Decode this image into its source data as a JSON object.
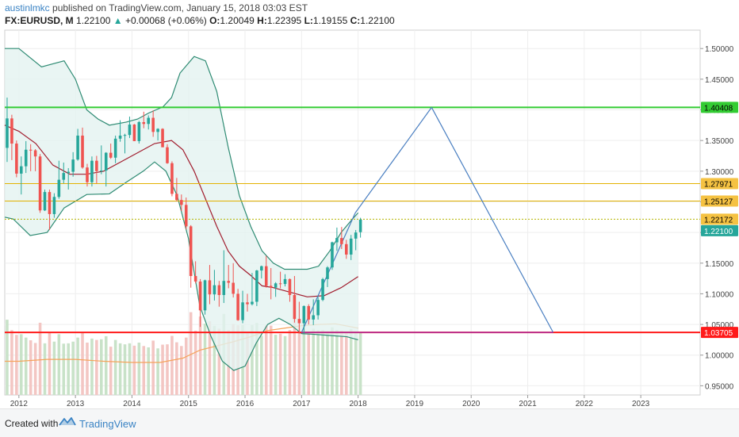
{
  "header": {
    "author": "austinlmkc",
    "published": "published on TradingView.com, January 15, 2018 03:03 EST",
    "symbol": "FX:EURUSD, M",
    "last": "1.22100",
    "change": "+0.00068 (+0.06%)",
    "ohlc": {
      "o_label": "O:",
      "o": "1.20049",
      "h_label": "H:",
      "h": "1.22395",
      "l_label": "L:",
      "l": "1.19155",
      "c_label": "C:",
      "c": "1.22100"
    }
  },
  "footer": {
    "created_with": "Created with",
    "brand": "TradingView"
  },
  "colors": {
    "up": "#26a69a",
    "down": "#ef5350",
    "bb": "#2e8b73",
    "bb_fill": "#e3f3f0",
    "sma": "#a11d2e",
    "green_line": "#33cc33",
    "yellow_line": "#e3b200",
    "red_line": "#ff1a1a",
    "purple_line": "#9c2fb5",
    "blue_line": "#4a7fc1",
    "vol_up": "#c8e2c8",
    "vol_down": "#f3c6c3",
    "vol_ma": "#f5a35b"
  },
  "chart_data": {
    "type": "candlestick",
    "interval": "monthly",
    "y_axis": {
      "ylim": [
        0.935,
        1.53
      ],
      "ticks": [
        "1.50000",
        "1.45000",
        "1.40000",
        "1.35000",
        "1.30000",
        "1.25000",
        "1.20000",
        "1.15000",
        "1.10000",
        "1.05000",
        "1.00000",
        "0.95000"
      ]
    },
    "x_axis": {
      "xlim": [
        2011.75,
        2024.05
      ],
      "ticks": [
        "2012",
        "2013",
        "2014",
        "2015",
        "2016",
        "2017",
        "2018",
        "2019",
        "2020",
        "2021",
        "2022",
        "2023"
      ]
    },
    "price_labels": [
      {
        "value": 1.40408,
        "label": "1.40408",
        "bg": "#33cc33",
        "fg": "#000000"
      },
      {
        "value": 1.27971,
        "label": "1.27971",
        "bg": "#f5c242",
        "fg": "#000000"
      },
      {
        "value": 1.25127,
        "label": "1.25127",
        "bg": "#f5c242",
        "fg": "#000000"
      },
      {
        "value": 1.22172,
        "label": "1.22172",
        "bg": "#f5c242",
        "fg": "#000000"
      },
      {
        "value": 1.221,
        "label": "1.22100",
        "bg": "#26a69a",
        "fg": "#ffffff"
      },
      {
        "value": 1.03705,
        "label": "1.03705",
        "bg": "#ff1a1a",
        "fg": "#ffffff"
      }
    ],
    "horizontal_lines": [
      {
        "value": 1.40408,
        "color": "#33cc33",
        "width": 2,
        "dash": ""
      },
      {
        "value": 1.27971,
        "color": "#e3b200",
        "width": 1,
        "dash": ""
      },
      {
        "value": 1.25127,
        "color": "#e3b200",
        "width": 1,
        "dash": ""
      },
      {
        "value": 1.22172,
        "color": "#b5b500",
        "width": 1,
        "dash": "2,2"
      },
      {
        "value": 1.03705,
        "color": "#ff1a1a",
        "width": 2,
        "dash": ""
      }
    ],
    "segments": [
      {
        "x1": 2017.0,
        "y1": 1.037,
        "x2": 2017.95,
        "y2": 1.232,
        "color": "#4a7fc1"
      },
      {
        "x1": 2017.95,
        "y1": 1.232,
        "x2": 2019.3,
        "y2": 1.404,
        "color": "#4a7fc1"
      },
      {
        "x1": 2019.3,
        "y1": 1.404,
        "x2": 2021.45,
        "y2": 1.037,
        "color": "#4a7fc1"
      },
      {
        "x1": 2017.0,
        "y1": 1.037,
        "x2": 2021.45,
        "y2": 1.037,
        "color": "#9c2fb5"
      }
    ],
    "candles": [
      {
        "t": "2011-10",
        "o": 1.338,
        "h": 1.42,
        "l": 1.315,
        "c": 1.386
      },
      {
        "t": "2011-11",
        "o": 1.386,
        "h": 1.392,
        "l": 1.318,
        "c": 1.345
      },
      {
        "t": "2011-12",
        "o": 1.345,
        "h": 1.35,
        "l": 1.29,
        "c": 1.296
      },
      {
        "t": "2012-01",
        "o": 1.296,
        "h": 1.324,
        "l": 1.262,
        "c": 1.308
      },
      {
        "t": "2012-02",
        "o": 1.308,
        "h": 1.349,
        "l": 1.297,
        "c": 1.335
      },
      {
        "t": "2012-03",
        "o": 1.335,
        "h": 1.344,
        "l": 1.3,
        "c": 1.334
      },
      {
        "t": "2012-04",
        "o": 1.334,
        "h": 1.336,
        "l": 1.3,
        "c": 1.324
      },
      {
        "t": "2012-05",
        "o": 1.324,
        "h": 1.328,
        "l": 1.232,
        "c": 1.236
      },
      {
        "t": "2012-06",
        "o": 1.236,
        "h": 1.27,
        "l": 1.235,
        "c": 1.266
      },
      {
        "t": "2012-07",
        "o": 1.266,
        "h": 1.27,
        "l": 1.204,
        "c": 1.23
      },
      {
        "t": "2012-08",
        "o": 1.23,
        "h": 1.264,
        "l": 1.224,
        "c": 1.258
      },
      {
        "t": "2012-09",
        "o": 1.258,
        "h": 1.317,
        "l": 1.255,
        "c": 1.286
      },
      {
        "t": "2012-10",
        "o": 1.286,
        "h": 1.314,
        "l": 1.28,
        "c": 1.297
      },
      {
        "t": "2012-11",
        "o": 1.297,
        "h": 1.305,
        "l": 1.27,
        "c": 1.299
      },
      {
        "t": "2012-12",
        "o": 1.299,
        "h": 1.331,
        "l": 1.291,
        "c": 1.319
      },
      {
        "t": "2013-01",
        "o": 1.319,
        "h": 1.369,
        "l": 1.317,
        "c": 1.358
      },
      {
        "t": "2013-02",
        "o": 1.358,
        "h": 1.371,
        "l": 1.304,
        "c": 1.306
      },
      {
        "t": "2013-03",
        "o": 1.306,
        "h": 1.312,
        "l": 1.275,
        "c": 1.282
      },
      {
        "t": "2013-04",
        "o": 1.282,
        "h": 1.324,
        "l": 1.275,
        "c": 1.317
      },
      {
        "t": "2013-05",
        "o": 1.317,
        "h": 1.325,
        "l": 1.28,
        "c": 1.3
      },
      {
        "t": "2013-06",
        "o": 1.3,
        "h": 1.342,
        "l": 1.295,
        "c": 1.301
      },
      {
        "t": "2013-07",
        "o": 1.301,
        "h": 1.331,
        "l": 1.275,
        "c": 1.33
      },
      {
        "t": "2013-08",
        "o": 1.33,
        "h": 1.345,
        "l": 1.32,
        "c": 1.322
      },
      {
        "t": "2013-09",
        "o": 1.322,
        "h": 1.358,
        "l": 1.313,
        "c": 1.353
      },
      {
        "t": "2013-10",
        "o": 1.353,
        "h": 1.383,
        "l": 1.348,
        "c": 1.358
      },
      {
        "t": "2013-11",
        "o": 1.358,
        "h": 1.361,
        "l": 1.329,
        "c": 1.359
      },
      {
        "t": "2013-12",
        "o": 1.359,
        "h": 1.389,
        "l": 1.354,
        "c": 1.376
      },
      {
        "t": "2014-01",
        "o": 1.376,
        "h": 1.377,
        "l": 1.349,
        "c": 1.349
      },
      {
        "t": "2014-02",
        "o": 1.349,
        "h": 1.382,
        "l": 1.345,
        "c": 1.38
      },
      {
        "t": "2014-03",
        "o": 1.38,
        "h": 1.397,
        "l": 1.37,
        "c": 1.377
      },
      {
        "t": "2014-04",
        "o": 1.377,
        "h": 1.391,
        "l": 1.368,
        "c": 1.387
      },
      {
        "t": "2014-05",
        "o": 1.387,
        "h": 1.399,
        "l": 1.356,
        "c": 1.364
      },
      {
        "t": "2014-06",
        "o": 1.364,
        "h": 1.37,
        "l": 1.35,
        "c": 1.369
      },
      {
        "t": "2014-07",
        "o": 1.369,
        "h": 1.37,
        "l": 1.339,
        "c": 1.339
      },
      {
        "t": "2014-08",
        "o": 1.339,
        "h": 1.344,
        "l": 1.312,
        "c": 1.313
      },
      {
        "t": "2014-09",
        "o": 1.313,
        "h": 1.316,
        "l": 1.259,
        "c": 1.263
      },
      {
        "t": "2014-10",
        "o": 1.263,
        "h": 1.289,
        "l": 1.251,
        "c": 1.253
      },
      {
        "t": "2014-11",
        "o": 1.253,
        "h": 1.262,
        "l": 1.235,
        "c": 1.245
      },
      {
        "t": "2014-12",
        "o": 1.245,
        "h": 1.257,
        "l": 1.205,
        "c": 1.21
      },
      {
        "t": "2015-01",
        "o": 1.21,
        "h": 1.212,
        "l": 1.11,
        "c": 1.129
      },
      {
        "t": "2015-02",
        "o": 1.129,
        "h": 1.153,
        "l": 1.117,
        "c": 1.12
      },
      {
        "t": "2015-03",
        "o": 1.12,
        "h": 1.124,
        "l": 1.046,
        "c": 1.073
      },
      {
        "t": "2015-04",
        "o": 1.073,
        "h": 1.123,
        "l": 1.066,
        "c": 1.122
      },
      {
        "t": "2015-05",
        "o": 1.122,
        "h": 1.147,
        "l": 1.083,
        "c": 1.099
      },
      {
        "t": "2015-06",
        "o": 1.099,
        "h": 1.139,
        "l": 1.089,
        "c": 1.114
      },
      {
        "t": "2015-07",
        "o": 1.114,
        "h": 1.121,
        "l": 1.079,
        "c": 1.098
      },
      {
        "t": "2015-08",
        "o": 1.098,
        "h": 1.171,
        "l": 1.085,
        "c": 1.121
      },
      {
        "t": "2015-09",
        "o": 1.121,
        "h": 1.147,
        "l": 1.109,
        "c": 1.118
      },
      {
        "t": "2015-10",
        "o": 1.118,
        "h": 1.15,
        "l": 1.094,
        "c": 1.1
      },
      {
        "t": "2015-11",
        "o": 1.1,
        "h": 1.108,
        "l": 1.056,
        "c": 1.057
      },
      {
        "t": "2015-12",
        "o": 1.057,
        "h": 1.105,
        "l": 1.052,
        "c": 1.086
      },
      {
        "t": "2016-01",
        "o": 1.086,
        "h": 1.1,
        "l": 1.071,
        "c": 1.083
      },
      {
        "t": "2016-02",
        "o": 1.083,
        "h": 1.134,
        "l": 1.081,
        "c": 1.087
      },
      {
        "t": "2016-03",
        "o": 1.087,
        "h": 1.139,
        "l": 1.08,
        "c": 1.138
      },
      {
        "t": "2016-04",
        "o": 1.138,
        "h": 1.146,
        "l": 1.125,
        "c": 1.145
      },
      {
        "t": "2016-05",
        "o": 1.145,
        "h": 1.162,
        "l": 1.11,
        "c": 1.113
      },
      {
        "t": "2016-06",
        "o": 1.113,
        "h": 1.142,
        "l": 1.091,
        "c": 1.11
      },
      {
        "t": "2016-07",
        "o": 1.11,
        "h": 1.119,
        "l": 1.095,
        "c": 1.117
      },
      {
        "t": "2016-08",
        "o": 1.117,
        "h": 1.136,
        "l": 1.109,
        "c": 1.116
      },
      {
        "t": "2016-09",
        "o": 1.116,
        "h": 1.132,
        "l": 1.112,
        "c": 1.124
      },
      {
        "t": "2016-10",
        "o": 1.124,
        "h": 1.125,
        "l": 1.087,
        "c": 1.098
      },
      {
        "t": "2016-11",
        "o": 1.098,
        "h": 1.129,
        "l": 1.053,
        "c": 1.059
      },
      {
        "t": "2016-12",
        "o": 1.059,
        "h": 1.087,
        "l": 1.035,
        "c": 1.052
      },
      {
        "t": "2017-01",
        "o": 1.052,
        "h": 1.081,
        "l": 1.034,
        "c": 1.08
      },
      {
        "t": "2017-02",
        "o": 1.08,
        "h": 1.083,
        "l": 1.05,
        "c": 1.058
      },
      {
        "t": "2017-03",
        "o": 1.058,
        "h": 1.091,
        "l": 1.049,
        "c": 1.065
      },
      {
        "t": "2017-04",
        "o": 1.065,
        "h": 1.095,
        "l": 1.058,
        "c": 1.09
      },
      {
        "t": "2017-05",
        "o": 1.09,
        "h": 1.126,
        "l": 1.088,
        "c": 1.124
      },
      {
        "t": "2017-06",
        "o": 1.124,
        "h": 1.145,
        "l": 1.111,
        "c": 1.143
      },
      {
        "t": "2017-07",
        "o": 1.143,
        "h": 1.185,
        "l": 1.139,
        "c": 1.184
      },
      {
        "t": "2017-08",
        "o": 1.184,
        "h": 1.208,
        "l": 1.17,
        "c": 1.191
      },
      {
        "t": "2017-09",
        "o": 1.191,
        "h": 1.209,
        "l": 1.173,
        "c": 1.181
      },
      {
        "t": "2017-10",
        "o": 1.181,
        "h": 1.188,
        "l": 1.157,
        "c": 1.164
      },
      {
        "t": "2017-11",
        "o": 1.164,
        "h": 1.196,
        "l": 1.155,
        "c": 1.19
      },
      {
        "t": "2017-12",
        "o": 1.19,
        "h": 1.204,
        "l": 1.171,
        "c": 1.2
      },
      {
        "t": "2018-01",
        "o": 1.2005,
        "h": 1.224,
        "l": 1.1916,
        "c": 1.221
      }
    ],
    "indicators": {
      "bb_upper": [
        [
          2011.75,
          1.5
        ],
        [
          2012.0,
          1.5
        ],
        [
          2012.4,
          1.47
        ],
        [
          2012.8,
          1.48
        ],
        [
          2013.0,
          1.45
        ],
        [
          2013.2,
          1.4
        ],
        [
          2013.4,
          1.385
        ],
        [
          2013.6,
          1.375
        ],
        [
          2013.9,
          1.38
        ],
        [
          2014.1,
          1.385
        ],
        [
          2014.3,
          1.395
        ],
        [
          2014.55,
          1.405
        ],
        [
          2014.7,
          1.42
        ],
        [
          2014.85,
          1.46
        ],
        [
          2015.1,
          1.487
        ],
        [
          2015.3,
          1.48
        ],
        [
          2015.5,
          1.43
        ],
        [
          2015.7,
          1.34
        ],
        [
          2015.9,
          1.26
        ],
        [
          2016.1,
          1.21
        ],
        [
          2016.3,
          1.17
        ],
        [
          2016.5,
          1.15
        ],
        [
          2016.7,
          1.14
        ],
        [
          2016.9,
          1.14
        ],
        [
          2017.1,
          1.14
        ],
        [
          2017.3,
          1.145
        ],
        [
          2017.5,
          1.17
        ],
        [
          2017.7,
          1.2
        ],
        [
          2017.9,
          1.222
        ],
        [
          2018.0,
          1.232
        ]
      ],
      "bb_lower": [
        [
          2011.75,
          1.225
        ],
        [
          2011.9,
          1.222
        ],
        [
          2012.2,
          1.195
        ],
        [
          2012.5,
          1.2
        ],
        [
          2012.8,
          1.24
        ],
        [
          2013.2,
          1.262
        ],
        [
          2013.6,
          1.263
        ],
        [
          2013.9,
          1.282
        ],
        [
          2014.2,
          1.3
        ],
        [
          2014.4,
          1.315
        ],
        [
          2014.6,
          1.3
        ],
        [
          2014.8,
          1.26
        ],
        [
          2015.0,
          1.19
        ],
        [
          2015.2,
          1.08
        ],
        [
          2015.4,
          1.03
        ],
        [
          2015.6,
          0.99
        ],
        [
          2015.8,
          0.975
        ],
        [
          2016.0,
          0.982
        ],
        [
          2016.2,
          1.02
        ],
        [
          2016.4,
          1.05
        ],
        [
          2016.6,
          1.06
        ],
        [
          2016.8,
          1.05
        ],
        [
          2017.0,
          1.035
        ],
        [
          2017.2,
          1.034
        ],
        [
          2017.5,
          1.032
        ],
        [
          2017.8,
          1.03
        ],
        [
          2018.0,
          1.025
        ]
      ],
      "sma": [
        [
          2011.75,
          1.375
        ],
        [
          2012.0,
          1.365
        ],
        [
          2012.3,
          1.345
        ],
        [
          2012.6,
          1.31
        ],
        [
          2012.9,
          1.295
        ],
        [
          2013.2,
          1.295
        ],
        [
          2013.5,
          1.3
        ],
        [
          2013.8,
          1.315
        ],
        [
          2014.1,
          1.33
        ],
        [
          2014.4,
          1.345
        ],
        [
          2014.7,
          1.35
        ],
        [
          2014.9,
          1.335
        ],
        [
          2015.1,
          1.3
        ],
        [
          2015.3,
          1.255
        ],
        [
          2015.5,
          1.21
        ],
        [
          2015.7,
          1.17
        ],
        [
          2015.9,
          1.145
        ],
        [
          2016.1,
          1.13
        ],
        [
          2016.3,
          1.113
        ],
        [
          2016.5,
          1.11
        ],
        [
          2016.7,
          1.105
        ],
        [
          2016.9,
          1.1
        ],
        [
          2017.1,
          1.095
        ],
        [
          2017.4,
          1.097
        ],
        [
          2017.7,
          1.11
        ],
        [
          2018.0,
          1.128
        ]
      ],
      "volume_ma": [
        [
          2011.75,
          0.99
        ],
        [
          2012.0,
          0.99
        ],
        [
          2012.5,
          0.993
        ],
        [
          2013.0,
          0.993
        ],
        [
          2013.5,
          0.99
        ],
        [
          2014.0,
          0.988
        ],
        [
          2014.5,
          0.988
        ],
        [
          2014.9,
          0.995
        ],
        [
          2015.2,
          1.008
        ],
        [
          2015.5,
          1.015
        ],
        [
          2015.8,
          1.022
        ],
        [
          2016.1,
          1.03
        ],
        [
          2016.4,
          1.04
        ],
        [
          2016.7,
          1.044
        ],
        [
          2017.0,
          1.048
        ],
        [
          2017.3,
          1.05
        ],
        [
          2017.6,
          1.051
        ],
        [
          2018.0,
          1.044
        ]
      ]
    }
  }
}
